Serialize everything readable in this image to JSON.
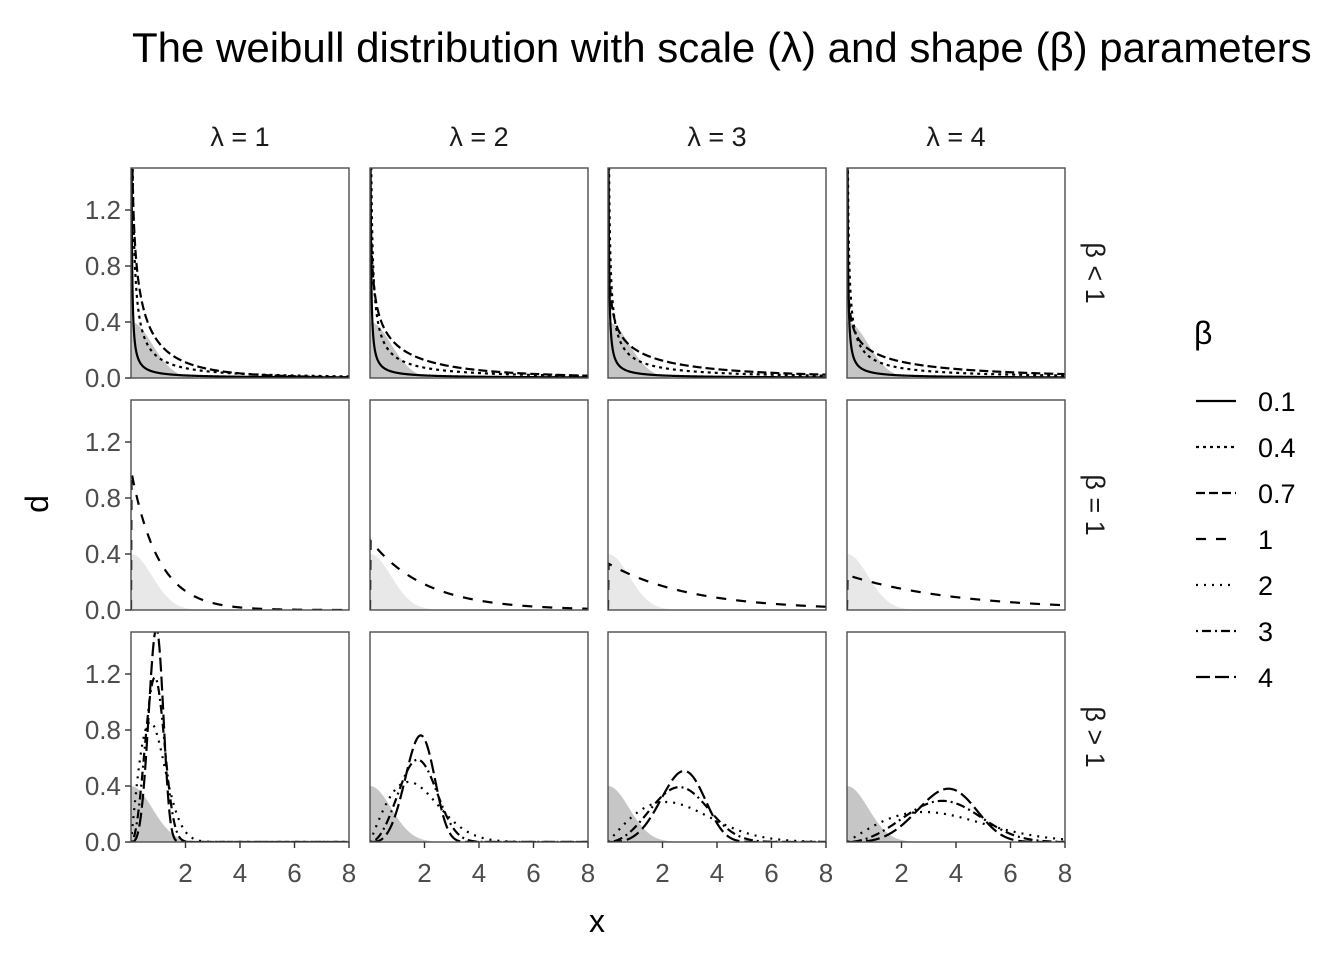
{
  "chart_data": {
    "type": "line",
    "title": "The weibull distribution with scale (λ) and shape (β) parameters",
    "xlabel": "x",
    "ylabel": "d",
    "xlim": [
      0,
      8
    ],
    "ylim": [
      0,
      1.5
    ],
    "xticks": [
      2,
      4,
      6,
      8
    ],
    "yticks": [
      0.0,
      0.4,
      0.8,
      1.2
    ],
    "grid": false,
    "legend": {
      "title": "β",
      "placement": "right",
      "entries": [
        "0.1",
        "0.4",
        "0.7",
        "1",
        "2",
        "3",
        "4"
      ]
    },
    "facets": {
      "columns": [
        "λ = 1",
        "λ = 2",
        "λ = 3",
        "λ = 4"
      ],
      "column_scales": [
        1,
        2,
        3,
        4
      ],
      "rows": [
        "β < 1",
        "β = 1",
        "β > 1"
      ],
      "row_shapes": [
        [
          0.1,
          0.4,
          0.7
        ],
        [
          1
        ],
        [
          2,
          3,
          4
        ]
      ]
    },
    "reference_area": {
      "description": "shaded background density",
      "rows": {
        "β < 1": "dark",
        "β = 1": "light",
        "β > 1": "dark"
      }
    },
    "series": [
      {
        "name": "0.1",
        "shape": 0.1
      },
      {
        "name": "0.4",
        "shape": 0.4
      },
      {
        "name": "0.7",
        "shape": 0.7
      },
      {
        "name": "1",
        "shape": 1
      },
      {
        "name": "2",
        "shape": 2
      },
      {
        "name": "3",
        "shape": 3
      },
      {
        "name": "4",
        "shape": 4
      }
    ],
    "colors": {
      "line": "#000000",
      "area_dark": "#c6c6c6",
      "area_light": "#e8e8e8",
      "panel_border": "#4d4d4d",
      "tick_text": "#4d4d4d"
    }
  }
}
